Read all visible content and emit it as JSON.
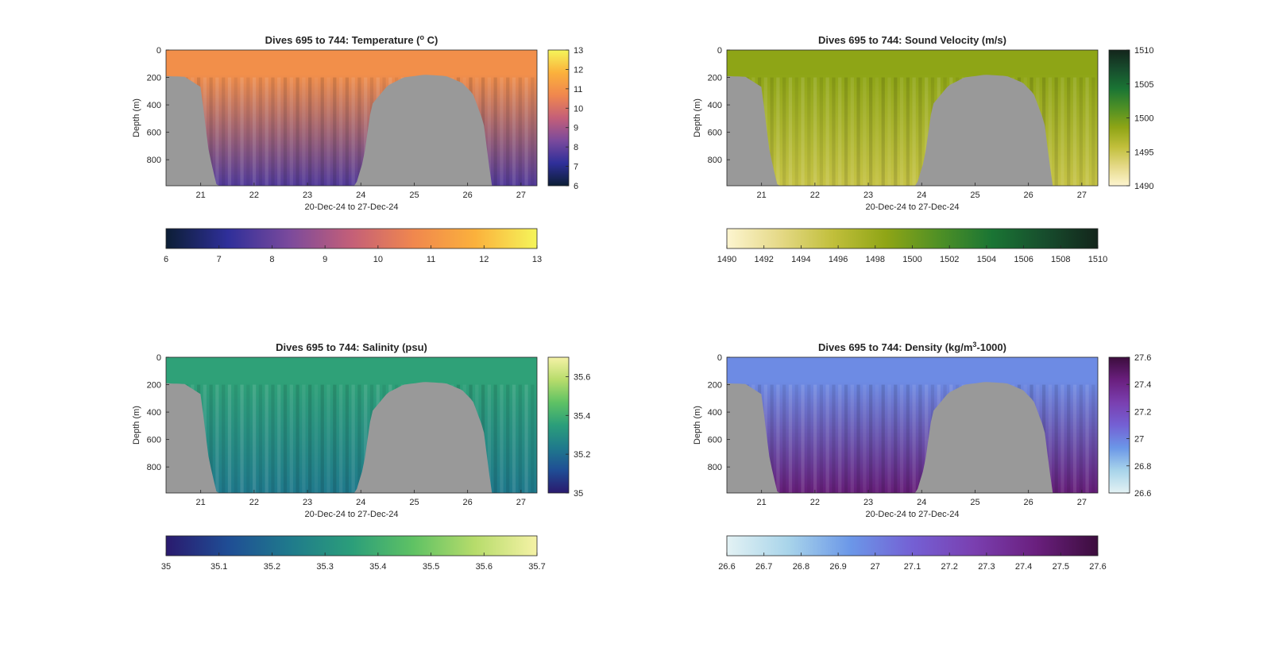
{
  "chart_data": [
    {
      "type": "heatmap",
      "title": "Dives 695 to 744: Temperature (",
      "title_sup": "o",
      "title_tail": " C)",
      "xlabel": "20-Dec-24 to 27-Dec-24",
      "ylabel": "Depth (m)",
      "xlim": [
        20.35,
        27.3
      ],
      "ylim": [
        0,
        990
      ],
      "x_ticks": [
        21,
        22,
        23,
        24,
        25,
        26,
        27
      ],
      "y_ticks": [
        0,
        200,
        400,
        600,
        800
      ],
      "colormap": [
        "#0c1e35",
        "#2f2f9a",
        "#7b4a9c",
        "#c45f78",
        "#f0874e",
        "#fbb13c",
        "#f5f55a"
      ],
      "clim": [
        6,
        13
      ],
      "colorbar_ticks": [
        6,
        7,
        8,
        9,
        10,
        11,
        12,
        13
      ],
      "surface_value": 10.9,
      "bottom_value": 7.7,
      "ridge_color": "#999999",
      "bathymetry_days": [
        20.35,
        20.7,
        21.0,
        21.15,
        21.3,
        23.9,
        24.05,
        24.2,
        24.5,
        24.8,
        25.2,
        25.6,
        25.9,
        26.1,
        26.3,
        26.45,
        27.3
      ],
      "bathymetry_depths": [
        190,
        195,
        270,
        740,
        990,
        990,
        800,
        400,
        260,
        200,
        180,
        190,
        240,
        320,
        530,
        990,
        990
      ]
    },
    {
      "type": "heatmap",
      "title": "Dives 695 to 744: Sound Velocity (m/s)",
      "xlabel": "20-Dec-24 to 27-Dec-24",
      "ylabel": "Depth (m)",
      "xlim": [
        20.35,
        27.3
      ],
      "ylim": [
        0,
        990
      ],
      "x_ticks": [
        21,
        22,
        23,
        24,
        25,
        26,
        27
      ],
      "y_ticks": [
        0,
        200,
        400,
        600,
        800
      ],
      "colormap": [
        "#fdf5d0",
        "#e5d987",
        "#c1bf3b",
        "#8fa516",
        "#4f9025",
        "#1a7534",
        "#174d2d",
        "#13251b"
      ],
      "clim": [
        1490,
        1510
      ],
      "colorbar_ticks": [
        1490,
        1492,
        1494,
        1496,
        1498,
        1500,
        1502,
        1504,
        1506,
        1508,
        1510
      ],
      "right_colorbar_ticks": [
        1490,
        1495,
        1500,
        1505,
        1510
      ],
      "surface_value": 1498.6,
      "bottom_value": 1495.3,
      "ridge_color": "#999999",
      "bathymetry_days": [
        20.35,
        20.7,
        21.0,
        21.15,
        21.3,
        23.9,
        24.05,
        24.2,
        24.5,
        24.8,
        25.2,
        25.6,
        25.9,
        26.1,
        26.3,
        26.45,
        27.3
      ],
      "bathymetry_depths": [
        190,
        195,
        270,
        740,
        990,
        990,
        800,
        400,
        260,
        200,
        180,
        190,
        240,
        320,
        530,
        990,
        990
      ]
    },
    {
      "type": "heatmap",
      "title": "Dives 695 to 744: Salinity (psu)",
      "xlabel": "20-Dec-24 to 27-Dec-24",
      "ylabel": "Depth (m)",
      "xlim": [
        20.35,
        27.3
      ],
      "ylim": [
        0,
        990
      ],
      "x_ticks": [
        21,
        22,
        23,
        24,
        25,
        26,
        27
      ],
      "y_ticks": [
        0,
        200,
        400,
        600,
        800
      ],
      "colormap": [
        "#2a1a6e",
        "#1f4d95",
        "#1f7a8c",
        "#2b9e7a",
        "#5fc264",
        "#b7dc6b",
        "#f5f2a6"
      ],
      "clim": [
        35,
        35.7
      ],
      "colorbar_ticks": [
        35,
        35.1,
        35.2,
        35.3,
        35.4,
        35.5,
        35.6,
        35.7
      ],
      "right_colorbar_ticks": [
        35,
        35.2,
        35.4,
        35.6
      ],
      "surface_value": 35.36,
      "bottom_value": 35.23,
      "ridge_color": "#999999",
      "bathymetry_days": [
        20.35,
        20.7,
        21.0,
        21.15,
        21.3,
        23.9,
        24.05,
        24.2,
        24.5,
        24.8,
        25.2,
        25.6,
        25.9,
        26.1,
        26.3,
        26.45,
        27.3
      ],
      "bathymetry_depths": [
        190,
        195,
        270,
        740,
        990,
        990,
        800,
        400,
        260,
        200,
        180,
        190,
        240,
        320,
        530,
        990,
        990
      ]
    },
    {
      "type": "heatmap",
      "title": "Dives 695 to 744: Density (kg/m",
      "title_sup": "3",
      "title_tail": "-1000)",
      "xlabel": "20-Dec-24 to 27-Dec-24",
      "ylabel": "Depth (m)",
      "xlim": [
        20.35,
        27.3
      ],
      "ylim": [
        0,
        990
      ],
      "x_ticks": [
        21,
        22,
        23,
        24,
        25,
        26,
        27
      ],
      "y_ticks": [
        0,
        200,
        400,
        600,
        800
      ],
      "colormap": [
        "#e3f2f4",
        "#a8d4ea",
        "#6b97e8",
        "#7460d4",
        "#7a3fb0",
        "#6a1f7e",
        "#3c0d3d"
      ],
      "clim": [
        26.6,
        27.6
      ],
      "colorbar_ticks": [
        26.6,
        26.7,
        26.8,
        26.9,
        27,
        27.1,
        27.2,
        27.3,
        27.4,
        27.5,
        27.6
      ],
      "right_colorbar_ticks": [
        26.6,
        26.8,
        27,
        27.2,
        27.4,
        27.6
      ],
      "surface_value": 26.97,
      "bottom_value": 27.45,
      "ridge_color": "#999999",
      "bathymetry_days": [
        20.35,
        20.7,
        21.0,
        21.15,
        21.3,
        23.9,
        24.05,
        24.2,
        24.5,
        24.8,
        25.2,
        25.6,
        25.9,
        26.1,
        26.3,
        26.45,
        27.3
      ],
      "bathymetry_depths": [
        190,
        195,
        270,
        740,
        990,
        990,
        800,
        400,
        260,
        200,
        180,
        190,
        240,
        320,
        530,
        990,
        990
      ]
    }
  ]
}
